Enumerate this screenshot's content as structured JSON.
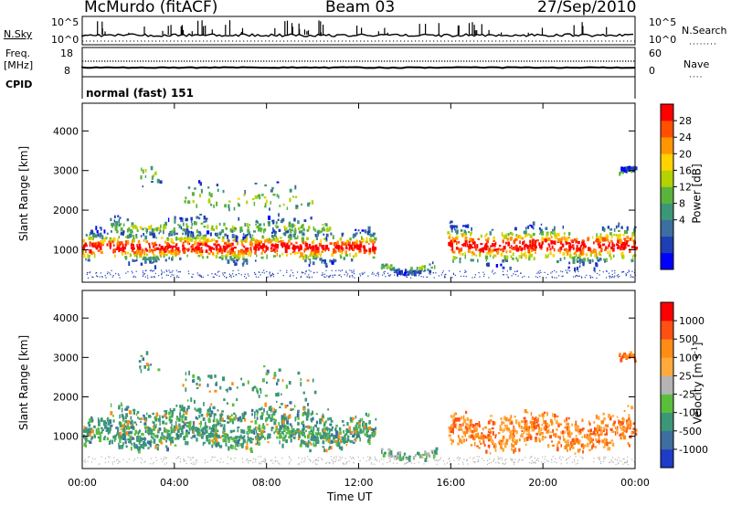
{
  "header": {
    "station": "McMurdo (fitACF)",
    "beam": "Beam 03",
    "date": "27/Sep/2010"
  },
  "chart_data": [
    {
      "type": "line",
      "panel": "noise",
      "left_label": "N.Sky",
      "right_label": "N.Search",
      "left_ticks": [
        "10^5",
        "10^0"
      ],
      "right_ticks": [
        "10^5",
        "10^0"
      ]
    },
    {
      "type": "line",
      "panel": "frequency",
      "left_label_top": "Freq.",
      "left_label_bottom": "[MHz]",
      "right_label": "Nave",
      "left_ticks": [
        "18",
        "8"
      ],
      "right_ticks": [
        "60",
        "0"
      ]
    },
    {
      "type": "text",
      "panel": "cpid",
      "label": "CPID",
      "value": "normal (fast) 151"
    },
    {
      "type": "heatmap",
      "panel": "power",
      "ylabel": "Slant Range [km]",
      "y_ticks": [
        1000,
        2000,
        3000,
        4000
      ],
      "ylim": [
        180,
        4700
      ],
      "colorbar_label": "Power [dB]",
      "colorbar_ticks": [
        "28",
        "24",
        "20",
        "16",
        "12",
        "8",
        "4"
      ],
      "colors": [
        "#0000ff",
        "#1e3fb4",
        "#3c6ea0",
        "#3c9678",
        "#5ab43c",
        "#b4d200",
        "#ffd200",
        "#ff9600",
        "#ff5000",
        "#ff0000"
      ]
    },
    {
      "type": "heatmap",
      "panel": "velocity",
      "ylabel": "Slant Range [km]",
      "y_ticks": [
        1000,
        2000,
        3000,
        4000
      ],
      "ylim": [
        180,
        4700
      ],
      "colorbar_label": "Velocity [m s",
      "colorbar_label_sup": "-1",
      "colorbar_label_end": "]",
      "colorbar_ticks": [
        "1000",
        "500",
        "100",
        "25",
        "-25",
        "-100",
        "-500",
        "-1000"
      ],
      "colors": [
        "#1e3cc8",
        "#3c6ea0",
        "#3c9678",
        "#5abe3c",
        "#b4b4b4",
        "#ffaa3c",
        "#ff8c14",
        "#ff5014",
        "#ff0000"
      ]
    }
  ],
  "x_axis": {
    "xlabel": "Time UT",
    "ticks": [
      "00:00",
      "04:00",
      "08:00",
      "12:00",
      "16:00",
      "20:00",
      "00:00"
    ]
  }
}
